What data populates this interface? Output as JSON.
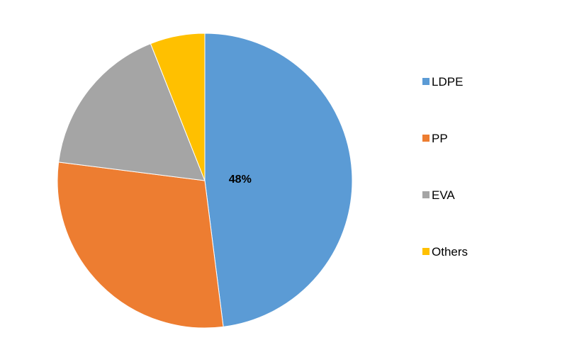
{
  "chart_data": {
    "type": "pie",
    "title": "",
    "start_angle_deg": 0,
    "direction": "clockwise",
    "legend_position": "right",
    "slices": [
      {
        "name": "LDPE",
        "value": 48,
        "color": "#5b9bd5",
        "label": "48%"
      },
      {
        "name": "PP",
        "value": 29,
        "color": "#ed7d31",
        "label": ""
      },
      {
        "name": "EVA",
        "value": 17,
        "color": "#a5a5a5",
        "label": ""
      },
      {
        "name": "Others",
        "value": 6,
        "color": "#ffc000",
        "label": ""
      }
    ]
  }
}
